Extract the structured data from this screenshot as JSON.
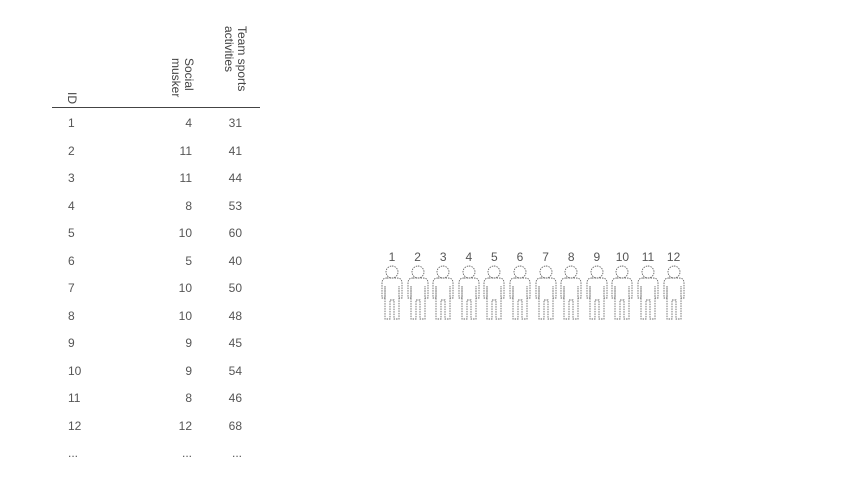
{
  "table": {
    "headers": {
      "id": "ID",
      "col_b": "Social\nmusker",
      "col_c": "Team sports\nactivities"
    },
    "header_lines_b": [
      "Social",
      "musker"
    ],
    "header_lines_c": [
      "Team sports",
      "activities"
    ],
    "rows": [
      {
        "id": "1",
        "b": "4",
        "c": "31"
      },
      {
        "id": "2",
        "b": "11",
        "c": "41"
      },
      {
        "id": "3",
        "b": "11",
        "c": "44"
      },
      {
        "id": "4",
        "b": "8",
        "c": "53"
      },
      {
        "id": "5",
        "b": "10",
        "c": "60"
      },
      {
        "id": "6",
        "b": "5",
        "c": "40"
      },
      {
        "id": "7",
        "b": "10",
        "c": "50"
      },
      {
        "id": "8",
        "b": "10",
        "c": "48"
      },
      {
        "id": "9",
        "b": "9",
        "c": "45"
      },
      {
        "id": "10",
        "b": "9",
        "c": "54"
      },
      {
        "id": "11",
        "b": "8",
        "c": "46"
      },
      {
        "id": "12",
        "b": "12",
        "c": "68"
      },
      {
        "id": "...",
        "b": "...",
        "c": "..."
      }
    ]
  },
  "people": {
    "labels": [
      "1",
      "2",
      "3",
      "4",
      "5",
      "6",
      "7",
      "8",
      "9",
      "10",
      "11",
      "12"
    ],
    "icon": "person-outline-icon",
    "stroke_color": "#666666"
  }
}
